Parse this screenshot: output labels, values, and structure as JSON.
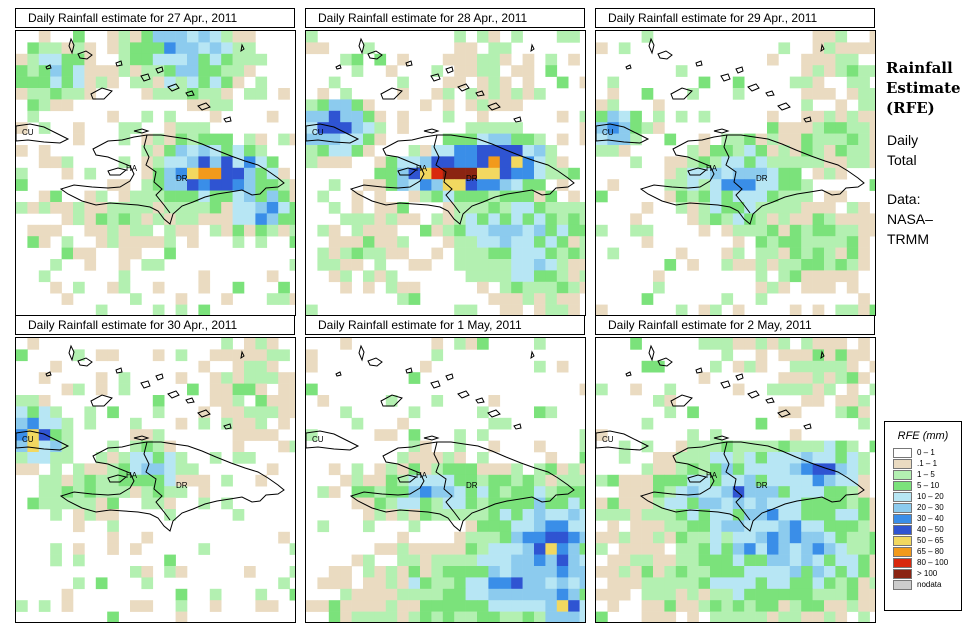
{
  "sidebar": {
    "title_lines": [
      "Rainfall",
      "Estimate",
      "(RFE)"
    ],
    "period_lines": [
      "Daily",
      "Total"
    ],
    "source_lines": [
      "Data:",
      "NASA–",
      "TRMM"
    ]
  },
  "legend": {
    "title": "RFE (mm)",
    "items": [
      {
        "label": "0 – 1",
        "color": "#ffffff"
      },
      {
        "label": ".1 – 1",
        "color": "#eadbc1"
      },
      {
        "label": "1 – 5",
        "color": "#b3f0b1"
      },
      {
        "label": "5 – 10",
        "color": "#7be27b"
      },
      {
        "label": "10 – 20",
        "color": "#b7e6f4"
      },
      {
        "label": "20 – 30",
        "color": "#8ccbee"
      },
      {
        "label": "30 – 40",
        "color": "#3a8ee8"
      },
      {
        "label": "40 – 50",
        "color": "#2f54d2"
      },
      {
        "label": "50 – 65",
        "color": "#f2d860"
      },
      {
        "label": "65 – 80",
        "color": "#f29a1b"
      },
      {
        "label": "80 – 100",
        "color": "#d8280d"
      },
      {
        "label": "> 100",
        "color": "#8b2412"
      },
      {
        "label": "nodata",
        "color": "#cccccc"
      }
    ]
  },
  "country_labels": {
    "cu": "CU",
    "ha": "HA",
    "dr": "DR"
  },
  "panels": [
    {
      "title": "Daily Rainfall estimate for  27 Apr., 2011"
    },
    {
      "title": "Daily Rainfall estimate for  28 Apr., 2011"
    },
    {
      "title": "Daily Rainfall estimate for  29 Apr., 2011"
    },
    {
      "title": "Daily Rainfall estimate for  30 Apr., 2011"
    },
    {
      "title": "Daily Rainfall estimate for  1 May, 2011"
    },
    {
      "title": "Daily Rainfall estimate for  2 May, 2011"
    }
  ]
}
